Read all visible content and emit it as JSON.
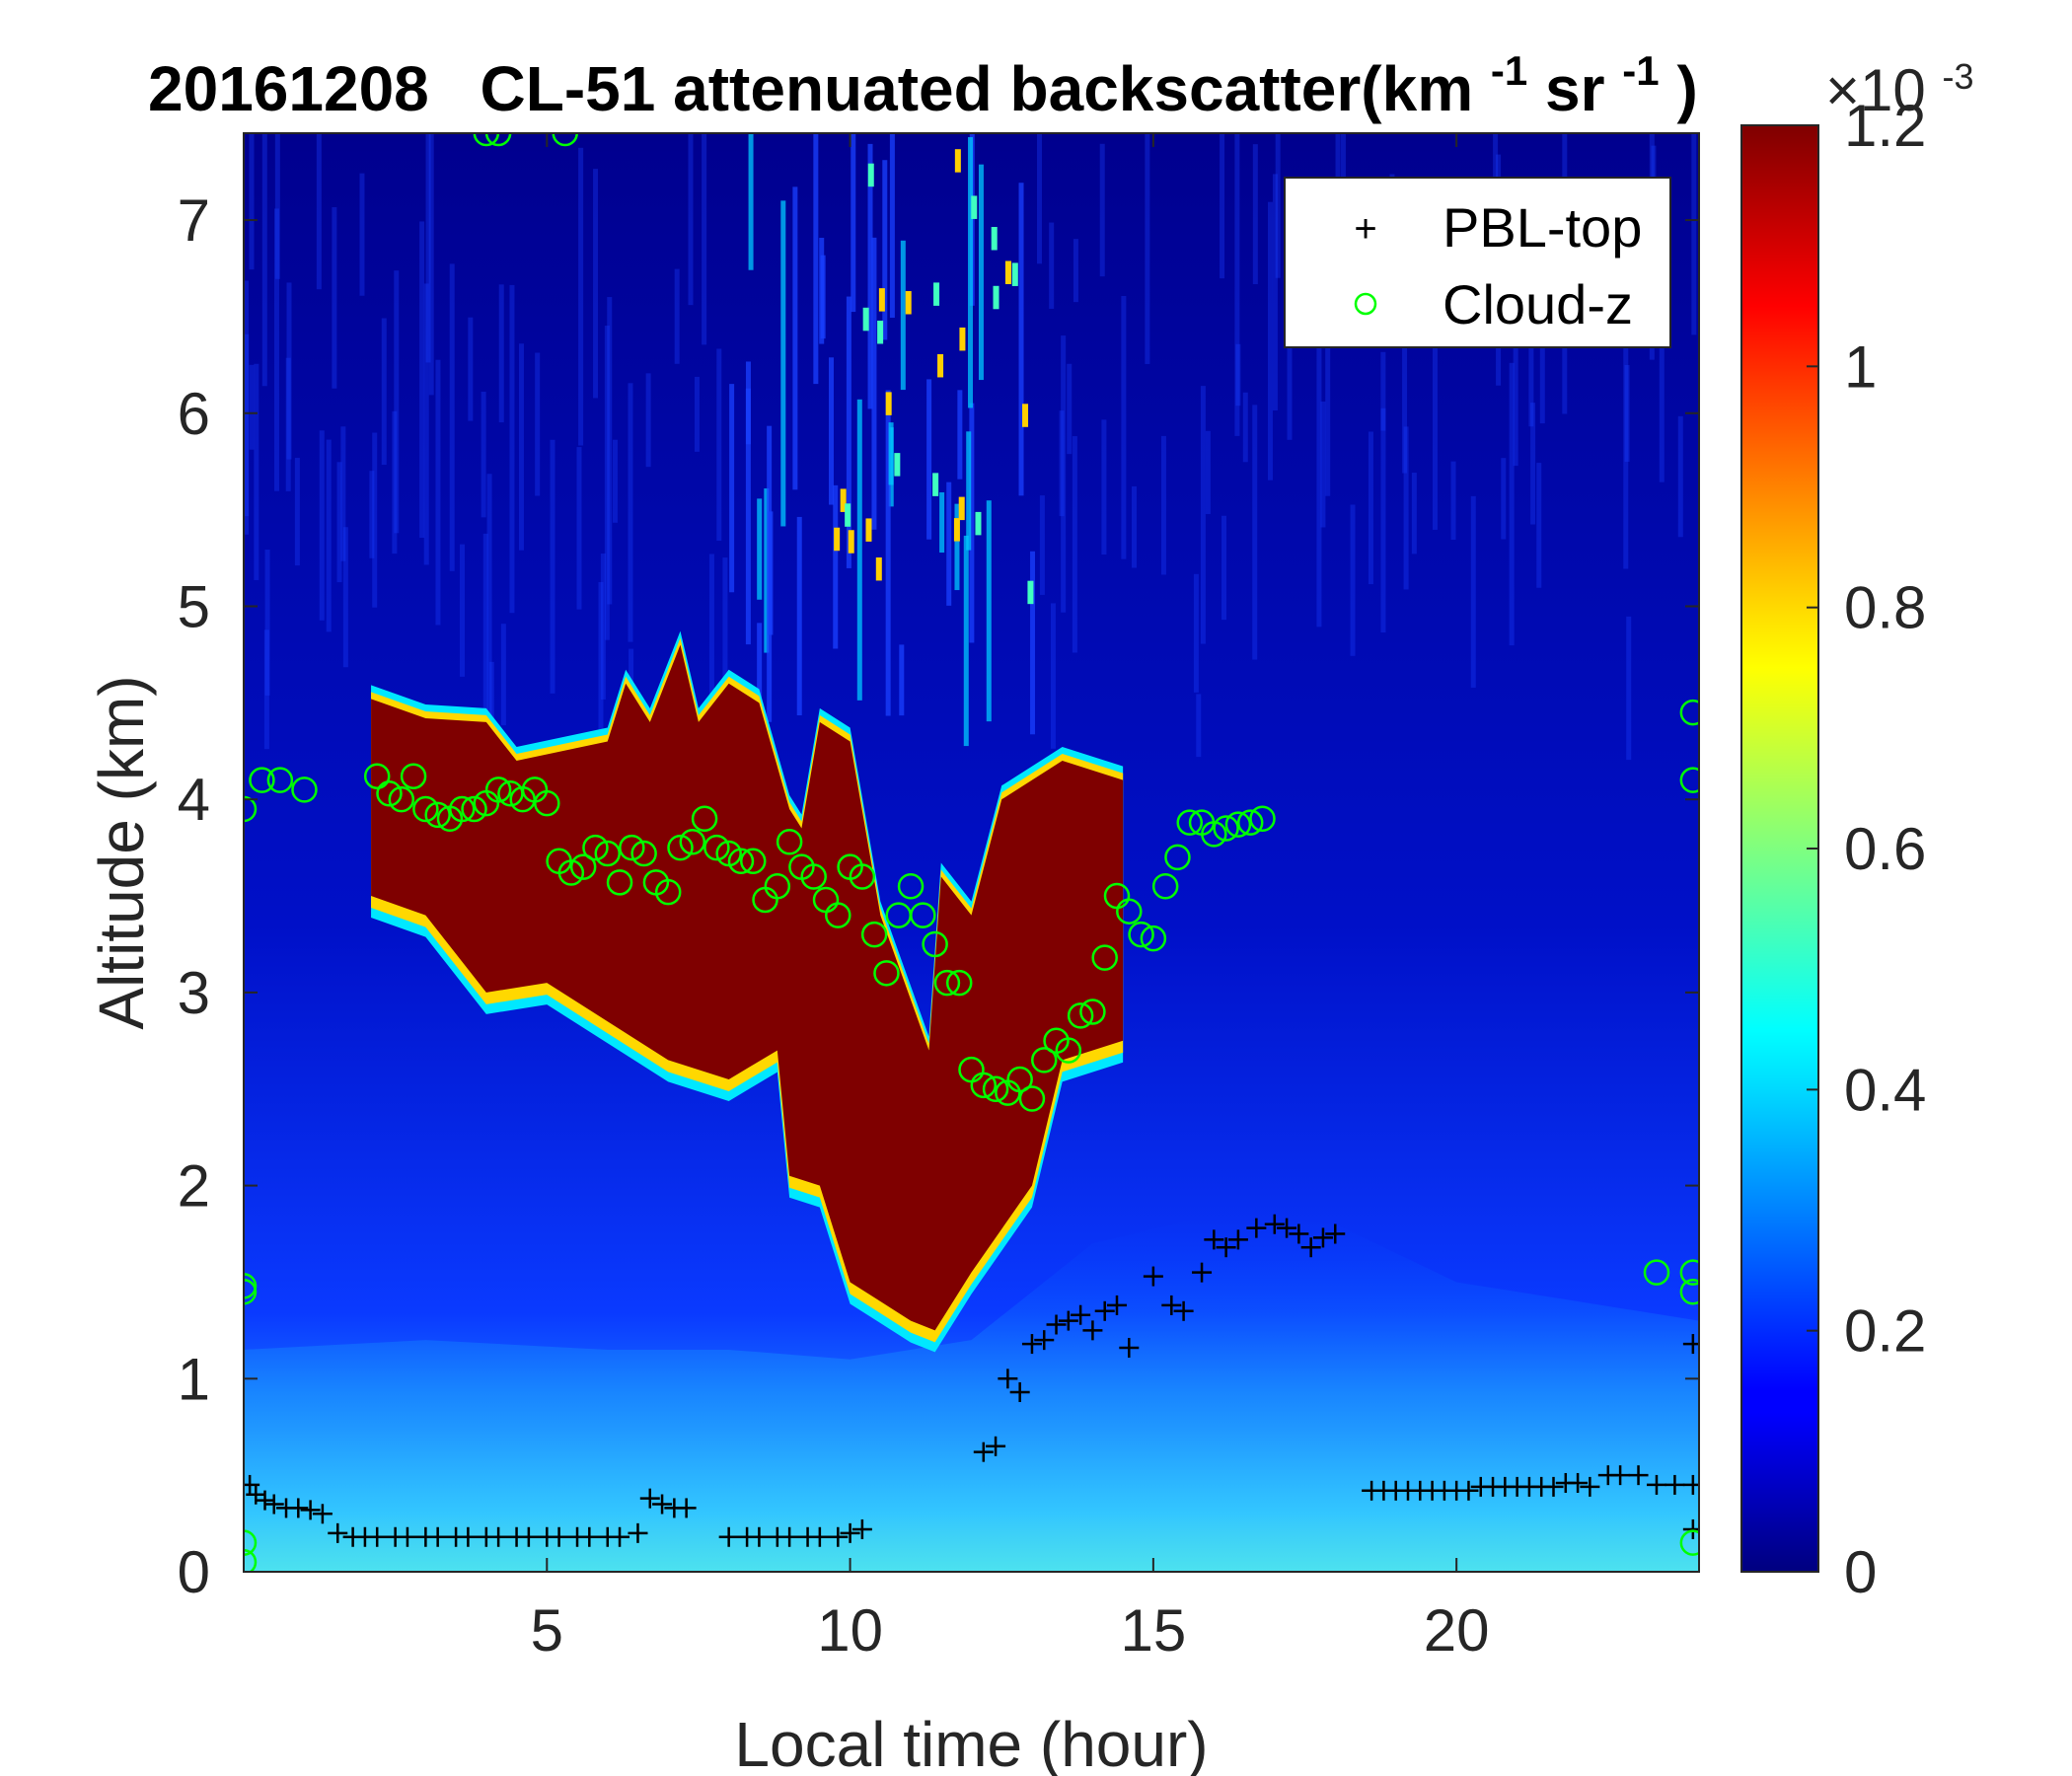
{
  "chart_data": {
    "type": "heatmap",
    "title": {
      "date": "20161208",
      "main": "CL-51 attenuated backscatter(km",
      "exp1": "-1",
      "mid": "sr",
      "exp2": "-1",
      "close": ")"
    },
    "xlabel": "Local time (hour)",
    "ylabel": "Altitude (km)",
    "xlim": [
      0,
      24
    ],
    "ylim": [
      0,
      7.45
    ],
    "xticks": [
      5,
      10,
      15,
      20
    ],
    "yticks": [
      0,
      1,
      2,
      3,
      4,
      5,
      6,
      7
    ],
    "colorbar": {
      "colormap": "jet",
      "clim": [
        0,
        0.0012
      ],
      "ticks": [
        0,
        0.2,
        0.4,
        0.6,
        0.8,
        1,
        1.2
      ],
      "tick_labels": [
        "0",
        "0.2",
        "0.4",
        "0.6",
        "0.8",
        "1",
        "1.2"
      ],
      "multiplier_base": "×10",
      "multiplier_exp": "-3"
    },
    "cloud_layer": {
      "top_km": [
        [
          2.1,
          4.52
        ],
        [
          3,
          4.42
        ],
        [
          4,
          4.4
        ],
        [
          4.5,
          4.2
        ],
        [
          6,
          4.3
        ],
        [
          6.3,
          4.6
        ],
        [
          6.7,
          4.4
        ],
        [
          7.2,
          4.8
        ],
        [
          7.5,
          4.4
        ],
        [
          8,
          4.6
        ],
        [
          8.5,
          4.5
        ],
        [
          9,
          3.95
        ],
        [
          9.2,
          3.85
        ],
        [
          9.5,
          4.4
        ],
        [
          10,
          4.3
        ],
        [
          10.5,
          3.4
        ],
        [
          11.3,
          2.7
        ],
        [
          11.5,
          3.6
        ],
        [
          12,
          3.4
        ],
        [
          12.5,
          4.0
        ],
        [
          13.5,
          4.2
        ],
        [
          14.5,
          4.1
        ]
      ],
      "base_km": [
        [
          2.1,
          3.5
        ],
        [
          3,
          3.4
        ],
        [
          4,
          3.0
        ],
        [
          5,
          3.05
        ],
        [
          6,
          2.85
        ],
        [
          7,
          2.65
        ],
        [
          8,
          2.55
        ],
        [
          8.8,
          2.7
        ],
        [
          9,
          2.05
        ],
        [
          9.5,
          2.0
        ],
        [
          10,
          1.5
        ],
        [
          11,
          1.3
        ],
        [
          11.4,
          1.25
        ],
        [
          12,
          1.55
        ],
        [
          13,
          2.0
        ],
        [
          13.5,
          2.65
        ],
        [
          14.5,
          2.75
        ]
      ]
    },
    "series": [
      {
        "name": "PBL-top",
        "marker": "+",
        "color": "#000000",
        "points": [
          [
            0.1,
            0.45
          ],
          [
            0.2,
            0.4
          ],
          [
            0.35,
            0.37
          ],
          [
            0.5,
            0.35
          ],
          [
            0.7,
            0.33
          ],
          [
            0.9,
            0.33
          ],
          [
            1.1,
            0.32
          ],
          [
            1.3,
            0.3
          ],
          [
            1.55,
            0.2
          ],
          [
            1.8,
            0.18
          ],
          [
            2.0,
            0.18
          ],
          [
            2.2,
            0.18
          ],
          [
            2.5,
            0.18
          ],
          [
            2.7,
            0.18
          ],
          [
            3.0,
            0.18
          ],
          [
            3.2,
            0.18
          ],
          [
            3.5,
            0.18
          ],
          [
            3.7,
            0.18
          ],
          [
            4.0,
            0.18
          ],
          [
            4.2,
            0.18
          ],
          [
            4.5,
            0.18
          ],
          [
            4.7,
            0.18
          ],
          [
            5.0,
            0.18
          ],
          [
            5.2,
            0.18
          ],
          [
            5.5,
            0.18
          ],
          [
            5.7,
            0.18
          ],
          [
            6.0,
            0.18
          ],
          [
            6.2,
            0.18
          ],
          [
            6.5,
            0.2
          ],
          [
            6.7,
            0.38
          ],
          [
            6.9,
            0.35
          ],
          [
            7.1,
            0.33
          ],
          [
            7.3,
            0.33
          ],
          [
            8.0,
            0.18
          ],
          [
            8.3,
            0.18
          ],
          [
            8.5,
            0.18
          ],
          [
            8.8,
            0.18
          ],
          [
            9.0,
            0.18
          ],
          [
            9.3,
            0.18
          ],
          [
            9.5,
            0.18
          ],
          [
            9.8,
            0.18
          ],
          [
            10.0,
            0.2
          ],
          [
            10.2,
            0.22
          ],
          [
            12.2,
            0.62
          ],
          [
            12.4,
            0.65
          ],
          [
            12.6,
            1.0
          ],
          [
            12.8,
            0.93
          ],
          [
            13.0,
            1.18
          ],
          [
            13.2,
            1.2
          ],
          [
            13.4,
            1.28
          ],
          [
            13.6,
            1.3
          ],
          [
            13.8,
            1.33
          ],
          [
            14.0,
            1.25
          ],
          [
            14.2,
            1.35
          ],
          [
            14.4,
            1.38
          ],
          [
            14.6,
            1.16
          ],
          [
            15.0,
            1.53
          ],
          [
            15.3,
            1.38
          ],
          [
            15.5,
            1.35
          ],
          [
            15.8,
            1.55
          ],
          [
            16.0,
            1.72
          ],
          [
            16.2,
            1.68
          ],
          [
            16.4,
            1.72
          ],
          [
            16.7,
            1.78
          ],
          [
            17.0,
            1.8
          ],
          [
            17.2,
            1.78
          ],
          [
            17.4,
            1.75
          ],
          [
            17.6,
            1.68
          ],
          [
            17.8,
            1.73
          ],
          [
            18.0,
            1.75
          ],
          [
            18.6,
            0.42
          ],
          [
            18.8,
            0.42
          ],
          [
            19.0,
            0.42
          ],
          [
            19.2,
            0.42
          ],
          [
            19.4,
            0.42
          ],
          [
            19.6,
            0.42
          ],
          [
            19.8,
            0.42
          ],
          [
            20.0,
            0.42
          ],
          [
            20.2,
            0.42
          ],
          [
            20.4,
            0.44
          ],
          [
            20.6,
            0.44
          ],
          [
            20.8,
            0.44
          ],
          [
            21.0,
            0.44
          ],
          [
            21.2,
            0.44
          ],
          [
            21.4,
            0.44
          ],
          [
            21.6,
            0.44
          ],
          [
            21.8,
            0.46
          ],
          [
            22.0,
            0.46
          ],
          [
            22.2,
            0.44
          ],
          [
            22.5,
            0.5
          ],
          [
            22.7,
            0.5
          ],
          [
            23.0,
            0.5
          ],
          [
            23.3,
            0.45
          ],
          [
            23.6,
            0.45
          ],
          [
            23.9,
            0.45
          ],
          [
            23.9,
            0.22
          ],
          [
            23.9,
            1.18
          ]
        ]
      },
      {
        "name": "Cloud-z",
        "marker": "o",
        "color": "#00ff00",
        "points": [
          [
            0.0,
            3.95
          ],
          [
            0.3,
            4.1
          ],
          [
            0.6,
            4.1
          ],
          [
            1.0,
            4.05
          ],
          [
            2.2,
            4.12
          ],
          [
            2.4,
            4.03
          ],
          [
            2.6,
            4.0
          ],
          [
            2.8,
            4.12
          ],
          [
            3.0,
            3.95
          ],
          [
            3.2,
            3.92
          ],
          [
            3.4,
            3.9
          ],
          [
            3.6,
            3.95
          ],
          [
            3.8,
            3.95
          ],
          [
            4.0,
            3.98
          ],
          [
            4.2,
            4.05
          ],
          [
            4.4,
            4.03
          ],
          [
            4.6,
            4.0
          ],
          [
            4.8,
            4.05
          ],
          [
            5.0,
            3.98
          ],
          [
            5.2,
            3.68
          ],
          [
            5.4,
            3.62
          ],
          [
            5.6,
            3.65
          ],
          [
            5.8,
            3.75
          ],
          [
            6.0,
            3.72
          ],
          [
            6.2,
            3.57
          ],
          [
            6.4,
            3.75
          ],
          [
            6.6,
            3.72
          ],
          [
            6.8,
            3.57
          ],
          [
            7.0,
            3.52
          ],
          [
            7.2,
            3.75
          ],
          [
            7.4,
            3.78
          ],
          [
            7.6,
            3.9
          ],
          [
            7.8,
            3.75
          ],
          [
            8.0,
            3.72
          ],
          [
            8.2,
            3.68
          ],
          [
            8.4,
            3.68
          ],
          [
            8.6,
            3.48
          ],
          [
            8.8,
            3.55
          ],
          [
            9.0,
            3.78
          ],
          [
            9.2,
            3.65
          ],
          [
            9.4,
            3.6
          ],
          [
            9.6,
            3.48
          ],
          [
            9.8,
            3.4
          ],
          [
            10.0,
            3.65
          ],
          [
            10.2,
            3.6
          ],
          [
            10.4,
            3.3
          ],
          [
            10.6,
            3.1
          ],
          [
            10.8,
            3.4
          ],
          [
            11.0,
            3.55
          ],
          [
            11.2,
            3.4
          ],
          [
            11.4,
            3.25
          ],
          [
            11.6,
            3.05
          ],
          [
            11.8,
            3.05
          ],
          [
            12.0,
            2.6
          ],
          [
            12.2,
            2.52
          ],
          [
            12.4,
            2.5
          ],
          [
            12.6,
            2.48
          ],
          [
            12.8,
            2.55
          ],
          [
            13.0,
            2.45
          ],
          [
            13.2,
            2.65
          ],
          [
            13.4,
            2.75
          ],
          [
            13.6,
            2.7
          ],
          [
            13.8,
            2.88
          ],
          [
            14.0,
            2.9
          ],
          [
            14.2,
            3.18
          ],
          [
            14.4,
            3.5
          ],
          [
            14.6,
            3.42
          ],
          [
            14.8,
            3.3
          ],
          [
            15.0,
            3.28
          ],
          [
            15.2,
            3.55
          ],
          [
            15.4,
            3.7
          ],
          [
            15.6,
            3.88
          ],
          [
            15.8,
            3.88
          ],
          [
            16.0,
            3.82
          ],
          [
            16.2,
            3.85
          ],
          [
            16.4,
            3.87
          ],
          [
            16.6,
            3.88
          ],
          [
            16.8,
            3.9
          ],
          [
            0.0,
            1.48
          ],
          [
            0.0,
            1.45
          ],
          [
            0.0,
            0.05
          ],
          [
            0.0,
            0.15
          ],
          [
            4.0,
            7.45
          ],
          [
            4.2,
            7.45
          ],
          [
            5.3,
            7.45
          ],
          [
            23.3,
            1.55
          ],
          [
            23.9,
            4.45
          ],
          [
            23.9,
            4.1
          ],
          [
            23.9,
            1.55
          ],
          [
            23.9,
            1.45
          ],
          [
            23.9,
            0.15
          ]
        ]
      }
    ],
    "legend": {
      "position": "top-right",
      "entries": [
        "PBL-top",
        "Cloud-z"
      ]
    }
  }
}
